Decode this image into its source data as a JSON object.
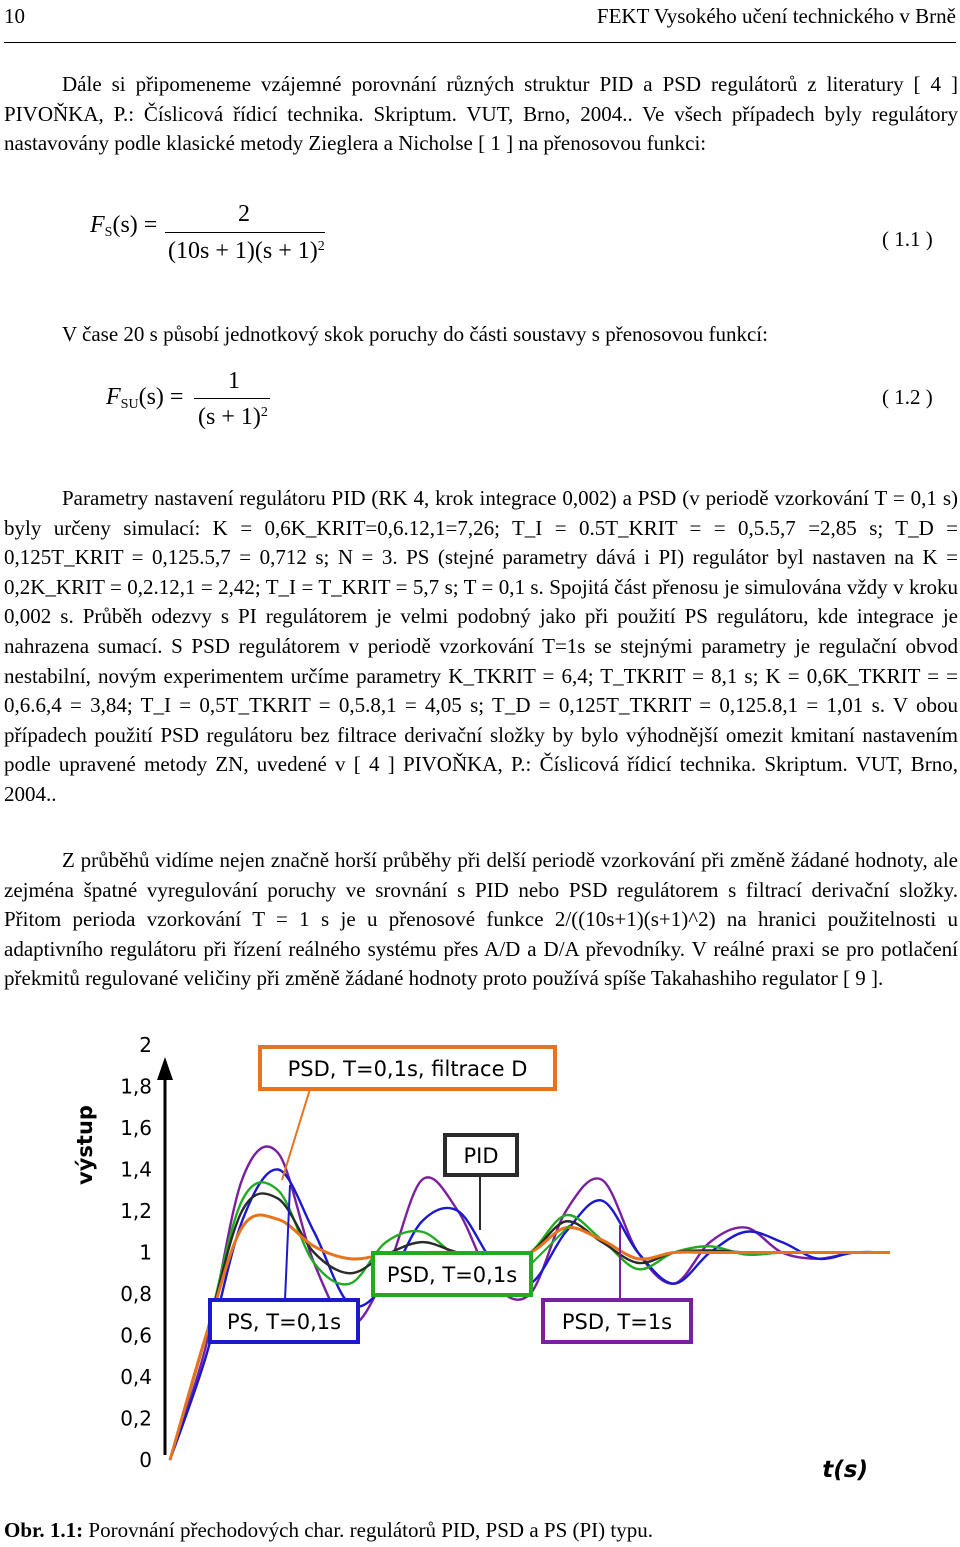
{
  "header": {
    "page_number": "10",
    "publisher": "FEKT Vysokého učení technického v Brně"
  },
  "paragraphs": {
    "p1": "Dále si připomeneme vzájemné porovnání různých struktur PID a PSD regulátorů z literatury [ 4 ] PIVOŇKA, P.: Číslicová řídicí technika. Skriptum. VUT, Brno, 2004.. Ve všech případech byly regulátory nastavovány podle klasické metody Zieglera a Nicholse [ 1 ] na přenosovou funkci:",
    "p2": "V čase 20 s působí jednotkový skok poruchy do části soustavy s přenosovou funkcí:",
    "p3": "Parametry nastavení regulátoru PID (RK 4, krok integrace 0,002) a PSD (v periodě vzorkování T = 0,1 s) byly určeny simulací: K = 0,6K_KRIT=0,6.12,1=7,26; T_I = 0.5T_KRIT = = 0,5.5,7 =2,85 s; T_D = 0,125T_KRIT = 0,125.5,7 = 0,712 s; N = 3. PS (stejné parametry dává i PI) regulátor byl nastaven na K = 0,2K_KRIT = 0,2.12,1 = 2,42; T_I = T_KRIT = 5,7 s; T = 0,1 s. Spojitá část přenosu je simulována vždy v kroku 0,002 s. Průběh odezvy s PI regulátorem je velmi podobný jako při použití PS regulátoru, kde integrace je nahrazena sumací. S PSD regulátorem v periodě vzorkování T=1s se stejnými parametry je regulační obvod nestabilní, novým experimentem určíme parametry K_TKRIT = 6,4; T_TKRIT = 8,1 s; K = 0,6K_TKRIT = = 0,6.6,4 = 3,84; T_I = 0,5T_TKRIT = 0,5.8,1 = 4,05 s; T_D = 0,125T_TKRIT = 0,125.8,1 = 1,01 s. V obou případech použití PSD regulátoru bez filtrace derivační složky by bylo výhodnější omezit kmitaní nastavením podle upravené metody ZN, uvedené v [ 4 ] PIVOŇKA, P.: Číslicová řídicí technika. Skriptum. VUT, Brno, 2004..",
    "p4": "Z průběhů vidíme nejen značně horší průběhy při delší periodě vzorkování při změně žádané hodnoty, ale zejména špatné vyregulování poruchy ve srovnání s PID nebo PSD regulátorem s filtrací derivační složky. Přitom perioda vzorkování T = 1 s je u přenosové funkce 2/((10s+1)(s+1)^2) na hranici použitelnosti u adaptivního regulátoru při řízení reálného systému přes A/D a D/A převodníky. V reálné praxi se pro potlačení překmitů regulované veličiny při změně žádané hodnoty proto používá spíše Takahashiho regulator [ 9 ]."
  },
  "equations": {
    "eq1": {
      "lhs_sym": "F",
      "lhs_sub": "S",
      "lhs_arg": "(s) =",
      "numerator": "2",
      "denominator": "(10s + 1)(s + 1)",
      "denominator_sup": "2",
      "number": "( 1.1 )"
    },
    "eq2": {
      "lhs_sym": "F",
      "lhs_sub": "SU",
      "lhs_arg": "(s) =",
      "numerator": "1",
      "denominator": "(s + 1)",
      "denominator_sup": "2",
      "number": "( 1.2 )"
    }
  },
  "figure": {
    "y_axis_label": "výstup",
    "x_axis_label": "t(s)",
    "labels": {
      "psd_filtrace": "PSD, T=0,1s, filtrace D",
      "pid": "PID",
      "psd_01": "PSD, T=0,1s",
      "ps_01": "PS, T=0,1s",
      "psd_1": "PSD, T=1s"
    },
    "colors": {
      "psd_filtrace": "#e8731e",
      "pid": "#2a2a2a",
      "psd_01": "#22aa22",
      "ps_01": "#1a1acc",
      "psd_1": "#7a1fa0",
      "red": "#e01010"
    }
  },
  "chart_data": {
    "type": "line",
    "ylim": [
      0,
      2
    ],
    "yticks": [
      "2",
      "1,8",
      "1,6",
      "1,4",
      "1,2",
      "1",
      "0,8",
      "0,6",
      "0,4",
      "0,2",
      "0"
    ],
    "x_ticks_visible": false,
    "grid": false,
    "series": [
      {
        "name": "PSD, T=0,1s, filtrace D",
        "color": "#e8731e",
        "x": [
          0,
          2,
          4,
          6,
          8,
          10,
          12,
          14,
          16,
          18,
          20,
          22,
          24,
          26,
          28,
          30,
          32,
          34,
          36,
          38,
          40
        ],
        "y": [
          0,
          0.6,
          1.12,
          1.16,
          1.03,
          0.97,
          0.99,
          1.0,
          1.0,
          1.0,
          1.0,
          1.12,
          1.06,
          0.97,
          1.0,
          1.0,
          1.0,
          1.0,
          1.0,
          1.0,
          1.0
        ]
      },
      {
        "name": "PID",
        "color": "#2a2a2a",
        "x": [
          0,
          2,
          4,
          6,
          8,
          10,
          12,
          14,
          16,
          18,
          20,
          22,
          24,
          26,
          28,
          30,
          32,
          34,
          36,
          38,
          40
        ],
        "y": [
          0,
          0.6,
          1.2,
          1.26,
          1.0,
          0.9,
          0.99,
          1.05,
          1.0,
          0.98,
          1.0,
          1.15,
          1.05,
          0.95,
          1.0,
          1.01,
          1.0,
          1.0,
          1.0,
          1.0,
          1.0
        ]
      },
      {
        "name": "PSD, T=0,1s",
        "color": "#22aa22",
        "x": [
          0,
          2,
          4,
          6,
          8,
          10,
          12,
          14,
          16,
          18,
          20,
          22,
          24,
          26,
          28,
          30,
          32,
          34,
          36,
          38,
          40
        ],
        "y": [
          0,
          0.6,
          1.25,
          1.3,
          0.95,
          0.85,
          1.05,
          1.1,
          0.98,
          0.95,
          1.0,
          1.18,
          1.06,
          0.92,
          1.0,
          1.03,
          0.99,
          1.0,
          1.0,
          1.0,
          1.0
        ]
      },
      {
        "name": "PS, T=0,1s",
        "color": "#1a1acc",
        "x": [
          0,
          2,
          4,
          6,
          8,
          10,
          12,
          14,
          16,
          18,
          20,
          22,
          24,
          26,
          28,
          30,
          32,
          34,
          36,
          38,
          40
        ],
        "y": [
          0,
          0.5,
          1.15,
          1.4,
          1.1,
          0.75,
          0.85,
          1.15,
          1.2,
          0.95,
          0.85,
          1.1,
          1.25,
          1.0,
          0.85,
          1.0,
          1.1,
          1.05,
          0.97,
          1.0,
          1.0
        ]
      },
      {
        "name": "PSD, T=1s",
        "color": "#7a1fa0",
        "x": [
          0,
          2,
          4,
          6,
          8,
          10,
          12,
          14,
          16,
          18,
          20,
          22,
          24,
          26,
          28,
          30,
          32,
          34,
          36,
          38,
          40
        ],
        "y": [
          0,
          0.55,
          1.35,
          1.48,
          0.95,
          0.65,
          0.9,
          1.35,
          1.2,
          0.85,
          0.8,
          1.2,
          1.35,
          1.0,
          0.85,
          1.05,
          1.12,
          1.0,
          0.97,
          1.0,
          1.0
        ]
      }
    ]
  },
  "caption": {
    "label": "Obr. 1.1:",
    "text": "Porovnání přechodových char. regulátorů PID, PSD a PS (PI) typu."
  }
}
